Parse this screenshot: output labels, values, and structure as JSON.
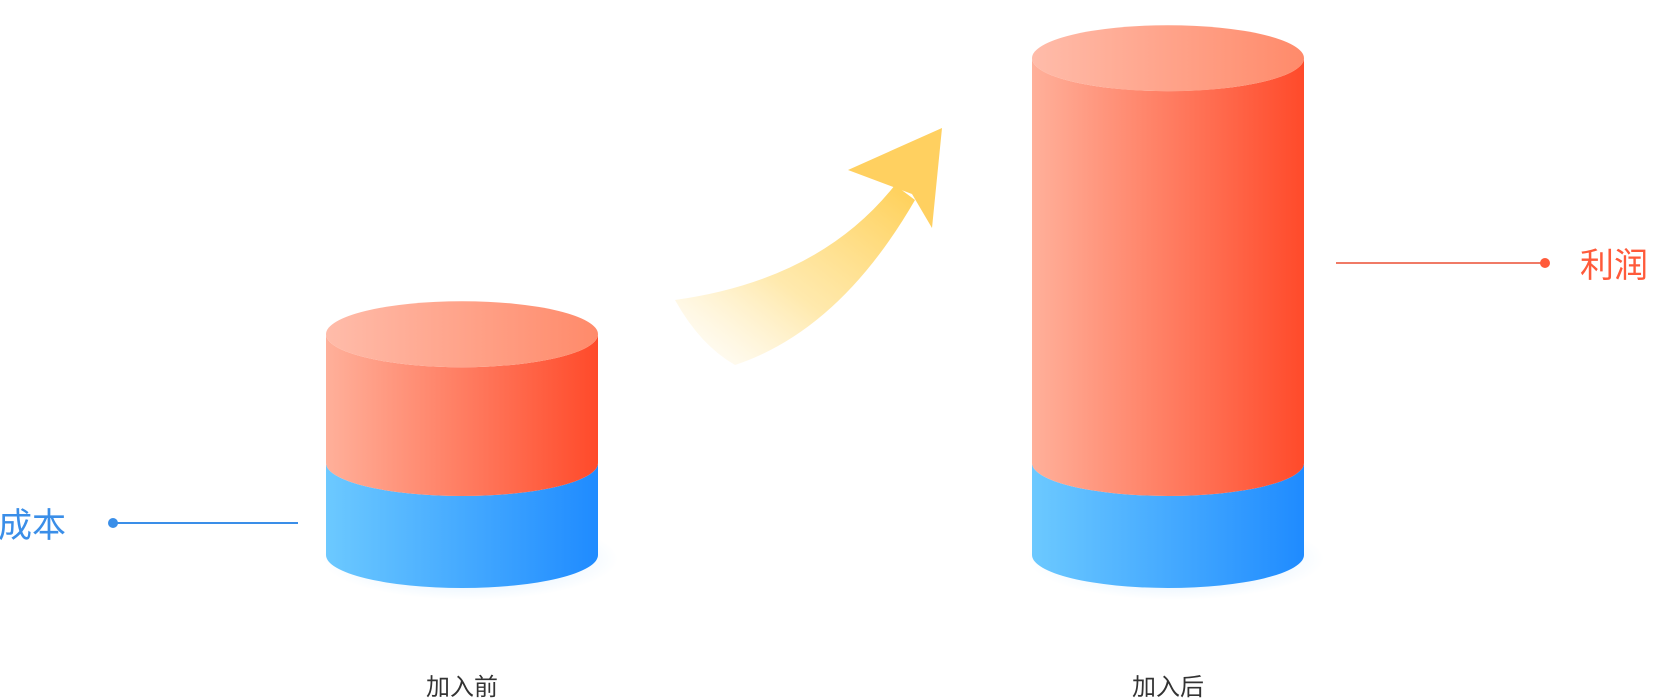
{
  "chart_data": {
    "type": "bar",
    "style": "stacked-cylinder",
    "categories": [
      "加入前",
      "加入后"
    ],
    "series": [
      {
        "name": "成本",
        "values": [
          1,
          1
        ],
        "color": "#3aa0ff"
      },
      {
        "name": "利润",
        "values": [
          1.4,
          4.4
        ],
        "color": "#ff6a4a"
      }
    ],
    "colors": {
      "cost_light": "#6cc9ff",
      "cost_dark": "#1f8bff",
      "profit_light": "#ffb09a",
      "profit_dark": "#ff4a2a",
      "arrow": "#ffd060",
      "cost_label": "#3a8ee8",
      "profit_label": "#ff5a3a",
      "category_label": "#333333"
    },
    "icons": [
      "up-arrow-icon"
    ]
  }
}
